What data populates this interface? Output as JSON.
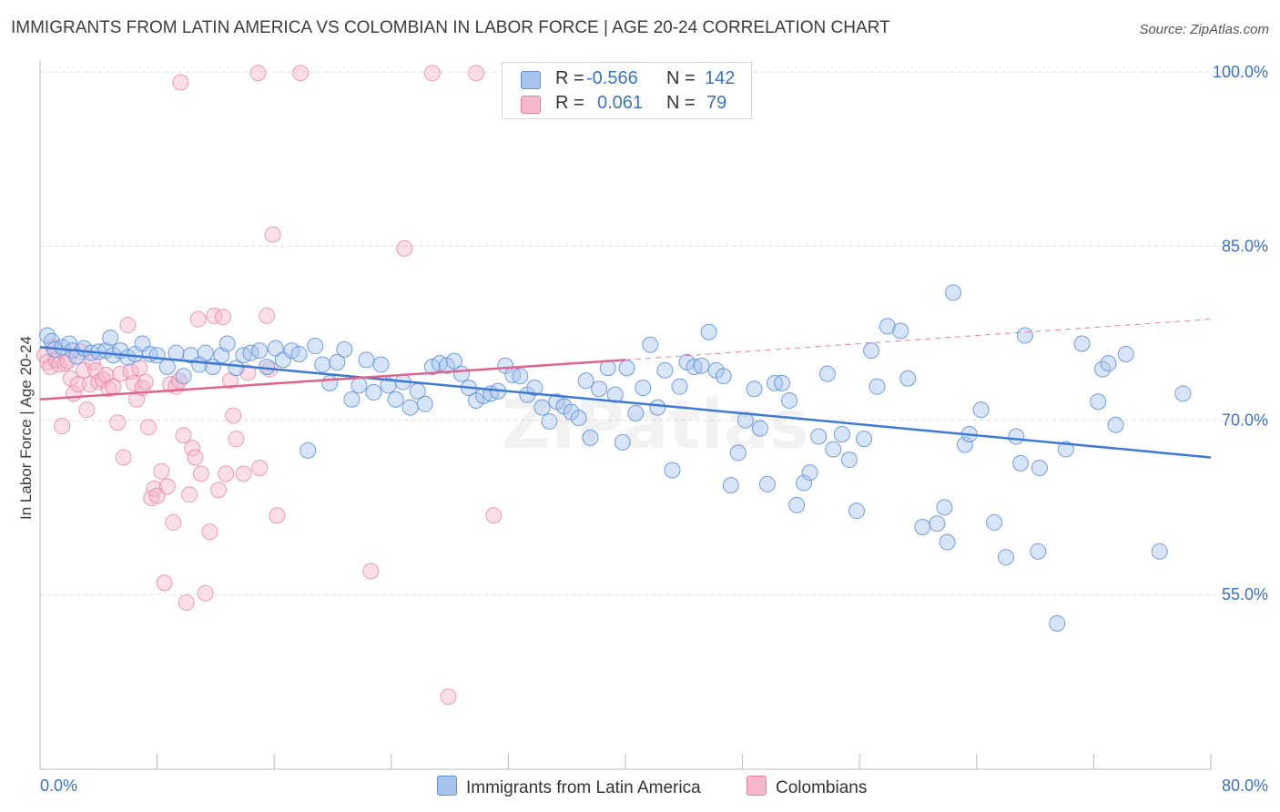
{
  "title": "IMMIGRANTS FROM LATIN AMERICA VS COLOMBIAN IN LABOR FORCE | AGE 20-24 CORRELATION CHART",
  "source": "Source: ZipAtlas.com",
  "watermark": "ZIPatlas",
  "colors": {
    "blue": "#5b8fd8",
    "blue_fill": "#a8c4ee",
    "blue_line": "#3d79d6",
    "pink": "#e77fa0",
    "pink_fill": "#f5b8cb",
    "pink_line": "#e0638c",
    "axis_text": "#3a72c8"
  },
  "legend": {
    "rows": [
      {
        "r_label": "R =",
        "r_value": "-0.566",
        "n_label": "N =",
        "n_value": "142"
      },
      {
        "r_label": "R =",
        "r_value": "0.061",
        "n_label": "N =",
        "n_value": "79"
      }
    ]
  },
  "chart_data": {
    "type": "scatter",
    "title": "IMMIGRANTS FROM LATIN AMERICA VS COLOMBIAN IN LABOR FORCE | AGE 20-24 CORRELATION CHART",
    "xlabel": "",
    "ylabel": "In Labor Force | Age 20-24",
    "xlim": [
      0,
      80
    ],
    "ylim": [
      40,
      102
    ],
    "x_tick_labels": [
      "0.0%",
      "80.0%"
    ],
    "y_ticks": [
      55,
      70,
      85,
      100
    ],
    "y_tick_labels": [
      "55.0%",
      "70.0%",
      "85.0%",
      "100.0%"
    ],
    "grid": "horizontal dashed",
    "legend_position": "bottom",
    "series": [
      {
        "name": "Immigrants from Latin America",
        "color": "#5b8fd8",
        "trend": {
          "x": [
            0,
            80
          ],
          "y": [
            76.3,
            66.8
          ],
          "style": "solid"
        },
        "points": [
          [
            0.5,
            77.3
          ],
          [
            0.8,
            76.8
          ],
          [
            1.0,
            76.1
          ],
          [
            1.5,
            76.3
          ],
          [
            2.0,
            76.6
          ],
          [
            2.2,
            76.0
          ],
          [
            2.5,
            75.5
          ],
          [
            3.0,
            76.2
          ],
          [
            3.5,
            75.8
          ],
          [
            4.0,
            75.9
          ],
          [
            4.5,
            76.0
          ],
          [
            4.8,
            77.1
          ],
          [
            5.0,
            75.6
          ],
          [
            5.5,
            76.0
          ],
          [
            6.0,
            75.4
          ],
          [
            6.5,
            75.7
          ],
          [
            7.0,
            76.6
          ],
          [
            7.5,
            75.7
          ],
          [
            8.0,
            75.6
          ],
          [
            8.7,
            74.6
          ],
          [
            9.3,
            75.8
          ],
          [
            9.8,
            73.8
          ],
          [
            10.3,
            75.6
          ],
          [
            10.9,
            74.8
          ],
          [
            11.3,
            75.8
          ],
          [
            11.8,
            74.6
          ],
          [
            12.4,
            75.6
          ],
          [
            12.8,
            76.6
          ],
          [
            13.4,
            74.5
          ],
          [
            13.9,
            75.6
          ],
          [
            14.4,
            75.8
          ],
          [
            15.0,
            76.0
          ],
          [
            15.5,
            74.6
          ],
          [
            16.1,
            76.2
          ],
          [
            16.6,
            75.2
          ],
          [
            17.2,
            76.0
          ],
          [
            17.7,
            75.7
          ],
          [
            18.3,
            67.4
          ],
          [
            18.8,
            76.4
          ],
          [
            19.3,
            74.8
          ],
          [
            19.8,
            73.2
          ],
          [
            20.3,
            75.0
          ],
          [
            20.8,
            76.1
          ],
          [
            21.3,
            71.8
          ],
          [
            21.8,
            73.0
          ],
          [
            22.3,
            75.2
          ],
          [
            22.8,
            72.4
          ],
          [
            23.3,
            74.8
          ],
          [
            23.8,
            73.0
          ],
          [
            24.3,
            71.8
          ],
          [
            24.8,
            73.3
          ],
          [
            25.3,
            71.1
          ],
          [
            25.8,
            72.5
          ],
          [
            26.3,
            71.4
          ],
          [
            26.8,
            74.6
          ],
          [
            27.3,
            74.9
          ],
          [
            27.8,
            74.7
          ],
          [
            28.3,
            75.1
          ],
          [
            28.8,
            74.0
          ],
          [
            29.3,
            72.8
          ],
          [
            29.8,
            71.7
          ],
          [
            30.3,
            72.1
          ],
          [
            30.8,
            72.3
          ],
          [
            31.3,
            72.5
          ],
          [
            31.8,
            74.7
          ],
          [
            32.3,
            73.9
          ],
          [
            32.8,
            73.8
          ],
          [
            33.3,
            72.2
          ],
          [
            33.8,
            72.8
          ],
          [
            34.3,
            71.1
          ],
          [
            34.8,
            69.9
          ],
          [
            35.3,
            71.6
          ],
          [
            35.8,
            71.2
          ],
          [
            36.3,
            70.7
          ],
          [
            36.8,
            70.2
          ],
          [
            37.3,
            73.4
          ],
          [
            37.6,
            68.5
          ],
          [
            38.2,
            72.7
          ],
          [
            38.8,
            74.5
          ],
          [
            39.3,
            72.2
          ],
          [
            39.8,
            68.1
          ],
          [
            40.1,
            74.5
          ],
          [
            40.7,
            70.6
          ],
          [
            41.2,
            72.8
          ],
          [
            41.7,
            76.5
          ],
          [
            42.2,
            71.1
          ],
          [
            42.7,
            74.3
          ],
          [
            43.2,
            65.7
          ],
          [
            43.7,
            72.9
          ],
          [
            44.2,
            75.0
          ],
          [
            44.7,
            74.6
          ],
          [
            45.2,
            74.7
          ],
          [
            45.7,
            77.6
          ],
          [
            46.2,
            74.3
          ],
          [
            46.7,
            73.8
          ],
          [
            47.2,
            64.4
          ],
          [
            47.7,
            67.2
          ],
          [
            48.2,
            70.0
          ],
          [
            48.8,
            72.7
          ],
          [
            49.2,
            69.3
          ],
          [
            49.7,
            64.5
          ],
          [
            50.2,
            73.2
          ],
          [
            50.7,
            73.2
          ],
          [
            51.2,
            71.7
          ],
          [
            51.7,
            62.7
          ],
          [
            52.2,
            64.6
          ],
          [
            52.6,
            65.5
          ],
          [
            53.2,
            68.6
          ],
          [
            53.8,
            74.0
          ],
          [
            54.2,
            67.5
          ],
          [
            54.8,
            68.8
          ],
          [
            55.3,
            66.6
          ],
          [
            55.8,
            62.2
          ],
          [
            56.3,
            68.4
          ],
          [
            56.8,
            76.0
          ],
          [
            57.2,
            72.9
          ],
          [
            57.9,
            78.1
          ],
          [
            58.8,
            77.7
          ],
          [
            59.3,
            73.6
          ],
          [
            60.3,
            60.8
          ],
          [
            61.3,
            61.1
          ],
          [
            61.8,
            62.5
          ],
          [
            62.0,
            59.5
          ],
          [
            62.4,
            81.0
          ],
          [
            63.2,
            67.9
          ],
          [
            63.5,
            68.8
          ],
          [
            64.3,
            70.9
          ],
          [
            65.2,
            61.2
          ],
          [
            66.0,
            58.2
          ],
          [
            66.7,
            68.6
          ],
          [
            67.0,
            66.3
          ],
          [
            67.3,
            77.3
          ],
          [
            68.2,
            58.7
          ],
          [
            68.3,
            65.9
          ],
          [
            69.5,
            52.5
          ],
          [
            70.1,
            67.5
          ],
          [
            71.2,
            76.6
          ],
          [
            72.3,
            71.6
          ],
          [
            72.6,
            74.4
          ],
          [
            73.0,
            74.9
          ],
          [
            73.5,
            69.6
          ],
          [
            74.2,
            75.7
          ],
          [
            76.5,
            58.7
          ],
          [
            78.1,
            72.3
          ]
        ]
      },
      {
        "name": "Colombians",
        "color": "#e77fa0",
        "trend": {
          "x": [
            0,
            40,
            80
          ],
          "y": [
            71.8,
            75.2,
            78.7
          ],
          "style": "solid-then-dashed"
        },
        "points": [
          [
            0.3,
            75.6
          ],
          [
            0.5,
            75.0
          ],
          [
            0.7,
            74.6
          ],
          [
            0.9,
            76.3
          ],
          [
            1.1,
            75.2
          ],
          [
            1.3,
            74.8
          ],
          [
            1.5,
            69.5
          ],
          [
            1.7,
            74.9
          ],
          [
            1.9,
            75.1
          ],
          [
            2.1,
            73.6
          ],
          [
            2.3,
            72.3
          ],
          [
            2.6,
            73.1
          ],
          [
            2.8,
            75.9
          ],
          [
            3.0,
            74.3
          ],
          [
            3.2,
            70.9
          ],
          [
            3.4,
            73.1
          ],
          [
            3.6,
            75.0
          ],
          [
            3.8,
            74.3
          ],
          [
            4.0,
            73.3
          ],
          [
            4.3,
            73.5
          ],
          [
            4.5,
            73.9
          ],
          [
            4.7,
            72.7
          ],
          [
            5.0,
            72.9
          ],
          [
            5.3,
            69.8
          ],
          [
            5.5,
            74.0
          ],
          [
            5.7,
            66.8
          ],
          [
            6.0,
            78.2
          ],
          [
            6.2,
            74.2
          ],
          [
            6.4,
            73.2
          ],
          [
            6.6,
            71.8
          ],
          [
            6.8,
            74.5
          ],
          [
            7.0,
            72.8
          ],
          [
            7.2,
            73.3
          ],
          [
            7.4,
            69.4
          ],
          [
            7.6,
            63.3
          ],
          [
            7.8,
            64.1
          ],
          [
            8.0,
            63.5
          ],
          [
            8.3,
            65.6
          ],
          [
            8.5,
            56.0
          ],
          [
            8.7,
            64.3
          ],
          [
            8.9,
            73.1
          ],
          [
            9.1,
            61.2
          ],
          [
            9.3,
            72.9
          ],
          [
            9.5,
            73.4
          ],
          [
            9.8,
            68.7
          ],
          [
            10.0,
            54.3
          ],
          [
            10.2,
            63.6
          ],
          [
            10.4,
            67.6
          ],
          [
            10.6,
            66.8
          ],
          [
            10.8,
            78.7
          ],
          [
            11.0,
            65.4
          ],
          [
            11.3,
            55.1
          ],
          [
            11.6,
            60.4
          ],
          [
            11.9,
            79.0
          ],
          [
            12.2,
            64.0
          ],
          [
            12.5,
            78.9
          ],
          [
            12.7,
            65.4
          ],
          [
            13.0,
            73.4
          ],
          [
            13.2,
            70.4
          ],
          [
            13.4,
            68.4
          ],
          [
            13.9,
            65.4
          ],
          [
            14.2,
            74.1
          ],
          [
            15.0,
            65.9
          ],
          [
            15.5,
            79.0
          ],
          [
            15.7,
            74.4
          ],
          [
            15.9,
            86.0
          ],
          [
            16.2,
            61.8
          ],
          [
            9.6,
            99.1
          ],
          [
            14.9,
            99.9
          ],
          [
            17.8,
            99.9
          ],
          [
            26.8,
            99.9
          ],
          [
            29.8,
            99.9
          ],
          [
            22.6,
            57.0
          ],
          [
            24.9,
            84.8
          ],
          [
            27.9,
            46.2
          ],
          [
            31.0,
            61.8
          ]
        ]
      }
    ]
  },
  "bottom_legend": [
    {
      "label": "Immigrants from Latin America"
    },
    {
      "label": "Colombians"
    }
  ]
}
